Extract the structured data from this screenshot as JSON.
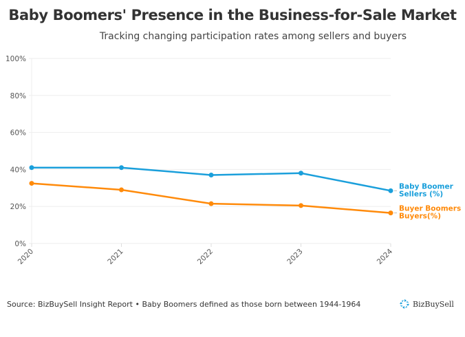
{
  "header": {
    "title": "Baby Boomers' Presence in the Business-for-Sale Market",
    "subtitle": "Tracking changing participation rates among sellers and buyers"
  },
  "footer": {
    "source": "Source: BizBuySell Insight Report • Baby Boomers defined as those born between 1944-1964",
    "logo_text": "BizBuySell",
    "logo_icon": "bizbuysell-logo-icon"
  },
  "chart_data": {
    "type": "line",
    "title": "Baby Boomers' Presence in the Business-for-Sale Market",
    "subtitle": "Tracking changing participation rates among sellers and buyers",
    "xlabel": "",
    "ylabel": "",
    "x": [
      "2020",
      "2021",
      "2022",
      "2023",
      "2024"
    ],
    "ylim": [
      0,
      100
    ],
    "yticks": [
      "0%",
      "20%",
      "40%",
      "60%",
      "80%",
      "100%"
    ],
    "grid": true,
    "legend": "right-inline",
    "series": [
      {
        "name": "Baby Boomer Sellers (%)",
        "label_lines": [
          "Baby Boomer",
          "Sellers (%)"
        ],
        "color": "#1a9fdb",
        "values": [
          41,
          41,
          37,
          38,
          28.5
        ]
      },
      {
        "name": "Buyer Boomers Buyers(%)",
        "label_lines": [
          "Buyer Boomers",
          "Buyers(%)"
        ],
        "color": "#ff8a0a",
        "values": [
          32.5,
          29,
          21.5,
          20.5,
          16.5
        ]
      }
    ]
  }
}
